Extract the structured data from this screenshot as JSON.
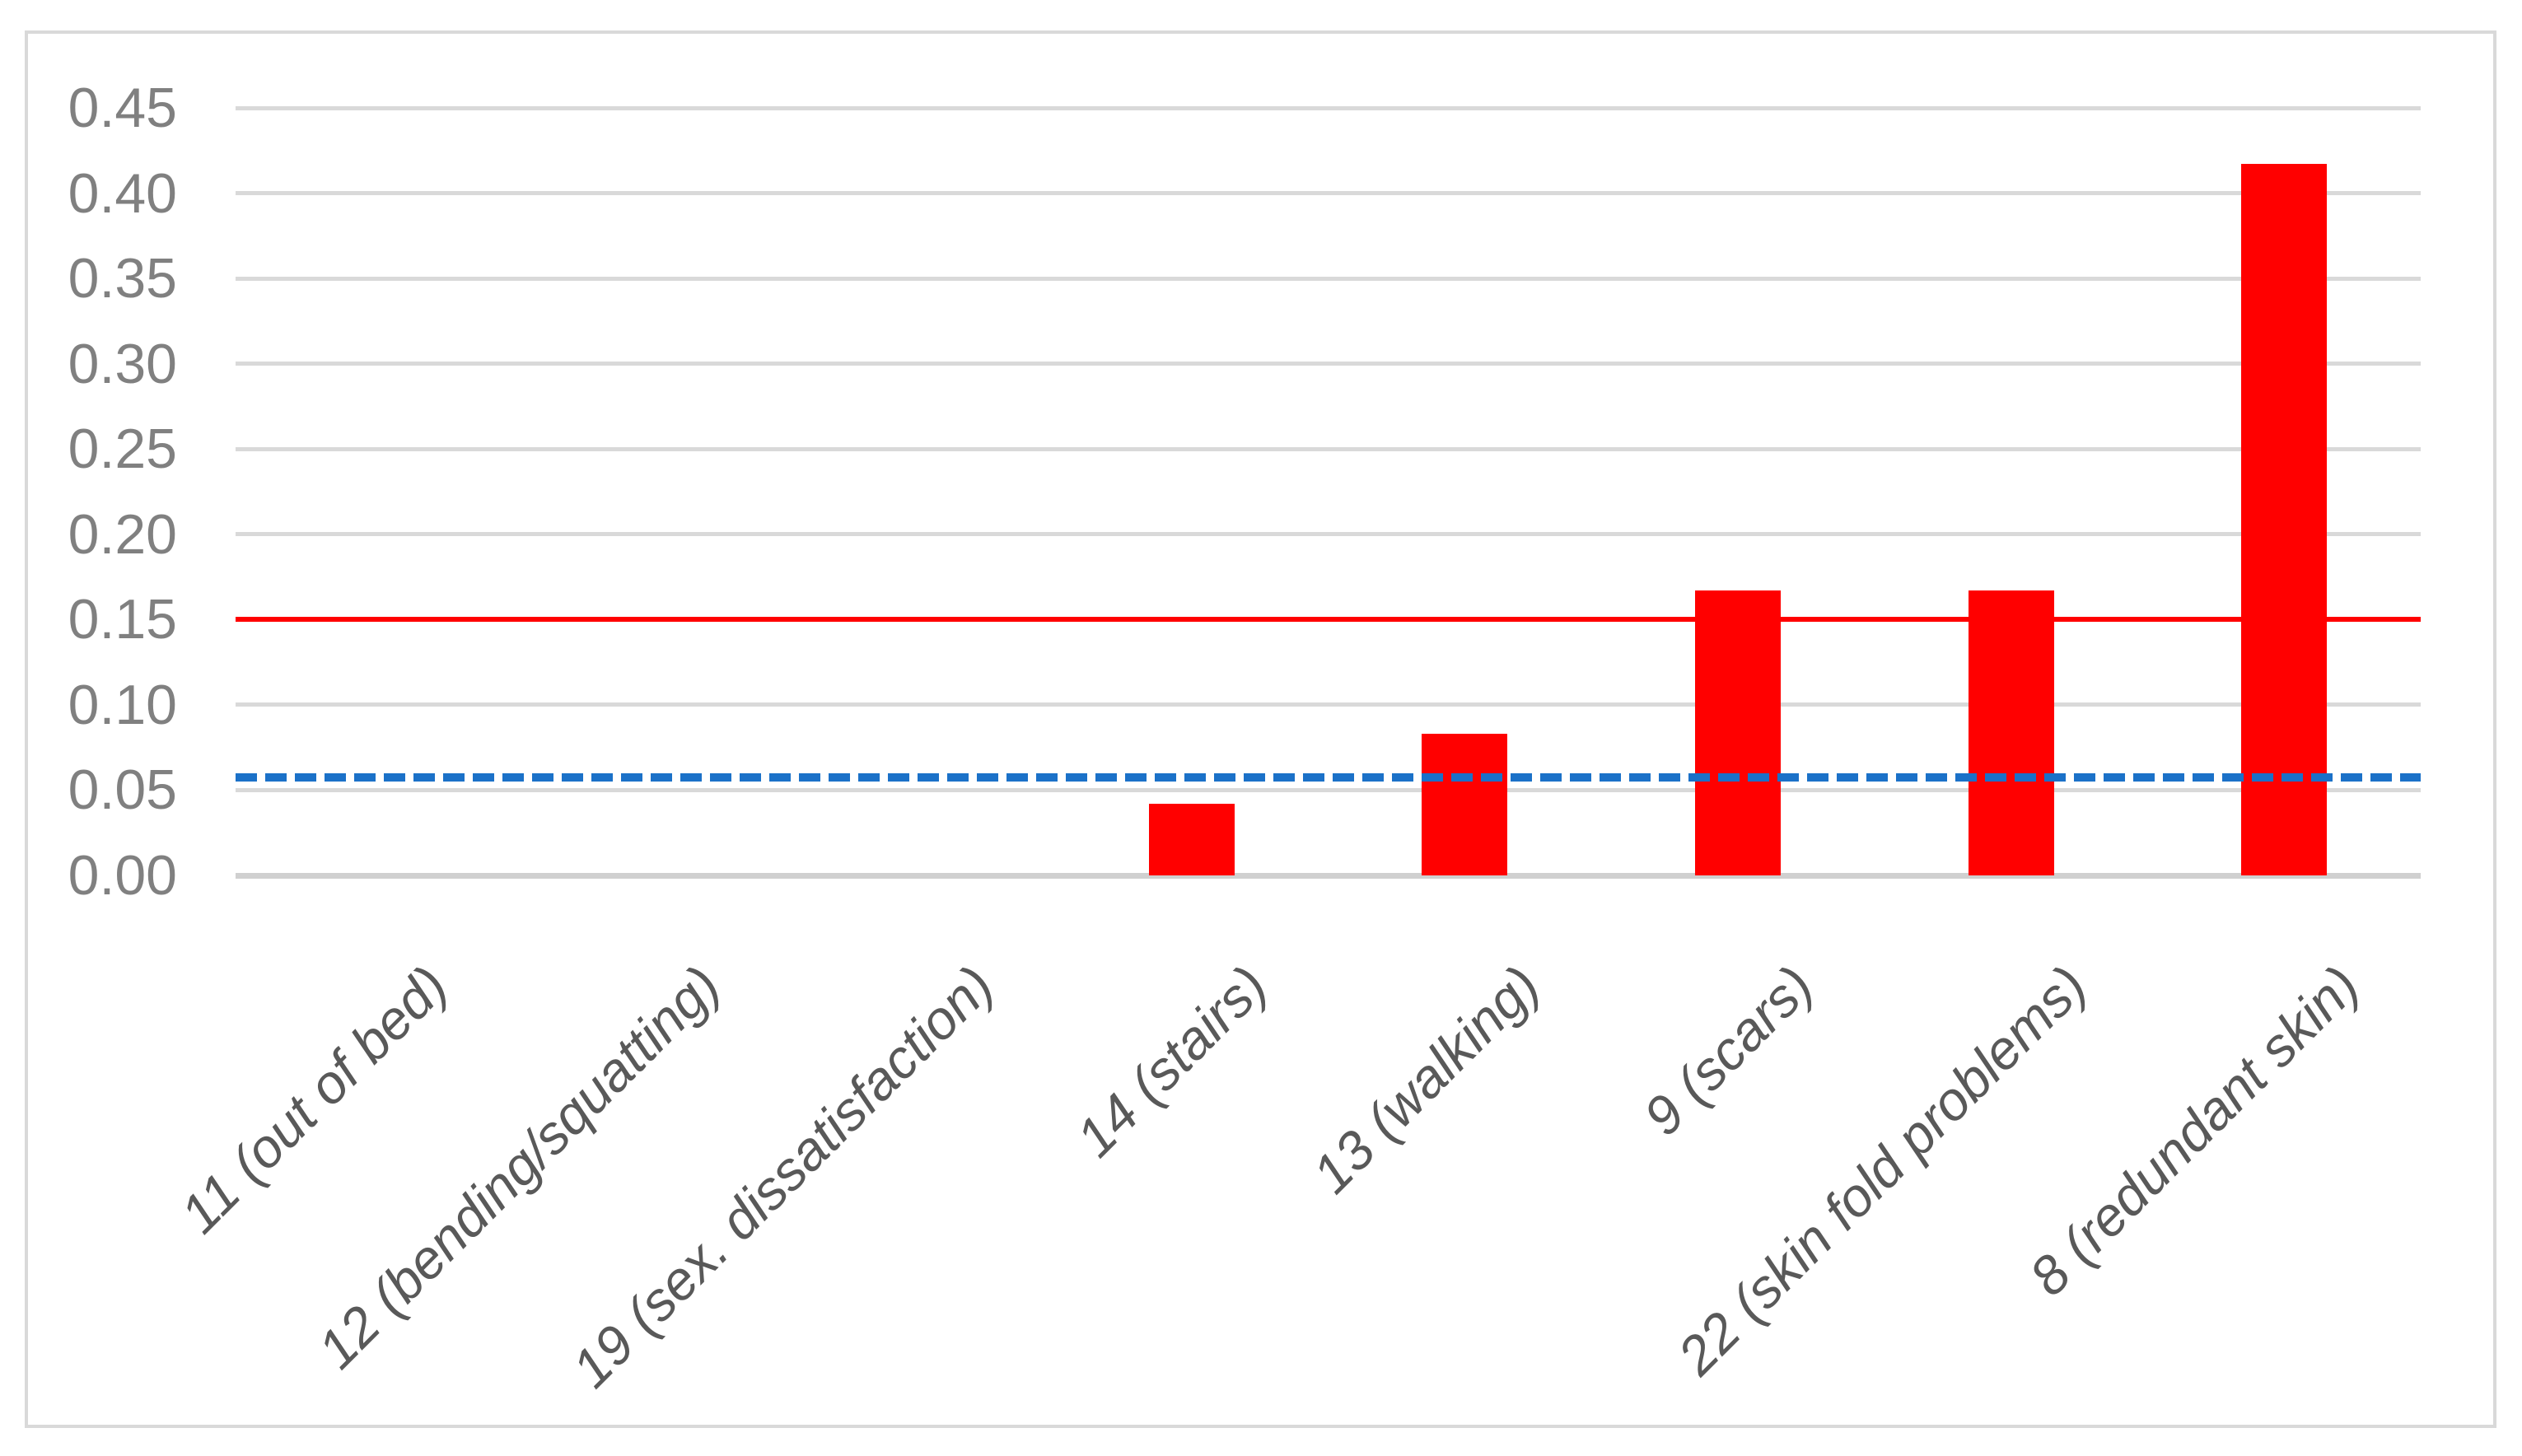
{
  "chart_data": {
    "type": "bar",
    "title": "",
    "xlabel": "",
    "ylabel": "",
    "categories": [
      "11 (out of bed)",
      "12 (bending/squatting)",
      "19 (sex. dissatisfaction)",
      "14 (stairs)",
      "13 (walking)",
      "9 (scars)",
      "22 (skin fold problems)",
      "8 (redundant skin)"
    ],
    "values": [
      0,
      0,
      0,
      0.042,
      0.083,
      0.167,
      0.167,
      0.417
    ],
    "bar_color": "#FF0000",
    "ylim": [
      0,
      0.45
    ],
    "ytick_labels": [
      "0.00",
      "0.05",
      "0.10",
      "0.15",
      "0.20",
      "0.25",
      "0.30",
      "0.35",
      "0.40",
      "0.45"
    ],
    "grid": true,
    "legend": "none",
    "reference_lines": [
      {
        "name": "solid-red-line",
        "value": 0.15,
        "color": "#FF0000",
        "style": "solid"
      },
      {
        "name": "dashed-blue-line",
        "value": 0.0575,
        "color": "#1B71C8",
        "style": "dashed"
      }
    ]
  },
  "colors": {
    "background": "#FFFFFF",
    "border": "#D9D9D9",
    "gridline": "#D9D9D9",
    "axis_line": "#D0D0D0",
    "y_tick_label": "#808080",
    "category_label": "#595959"
  }
}
